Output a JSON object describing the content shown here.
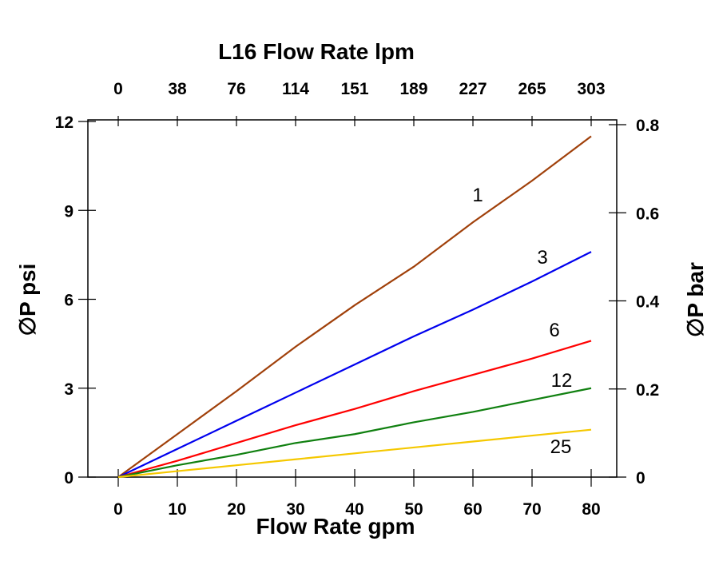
{
  "chart_data": {
    "type": "line",
    "title": "",
    "top_xlabel": "L16 Flow Rate lpm",
    "xlabel": "Flow Rate gpm",
    "ylabel": "∅P psi",
    "right_ylabel": "∅P bar",
    "xlim": [
      0,
      80
    ],
    "ylim": [
      0,
      12
    ],
    "right_ylim": [
      0,
      0.8
    ],
    "x_ticks": [
      0,
      10,
      20,
      30,
      40,
      50,
      60,
      70,
      80
    ],
    "top_x_ticks": [
      "0",
      "38",
      "76",
      "114",
      "151",
      "189",
      "227",
      "265",
      "303"
    ],
    "y_ticks": [
      0,
      3,
      6,
      9,
      12
    ],
    "right_y_ticks": [
      "0",
      "0.2",
      "0.4",
      "0.6",
      "0.8"
    ],
    "grid": false,
    "x": [
      0,
      10,
      20,
      30,
      40,
      50,
      60,
      70,
      80
    ],
    "series": [
      {
        "name": "1",
        "color": "#a0400a",
        "values": [
          0,
          1.45,
          2.9,
          4.4,
          5.8,
          7.1,
          8.6,
          10.0,
          11.5
        ]
      },
      {
        "name": "3",
        "color": "#0000ee",
        "values": [
          0,
          0.95,
          1.9,
          2.85,
          3.8,
          4.75,
          5.65,
          6.6,
          7.6
        ]
      },
      {
        "name": "6",
        "color": "#ff0000",
        "values": [
          0,
          0.55,
          1.15,
          1.75,
          2.3,
          2.9,
          3.45,
          4.0,
          4.6
        ]
      },
      {
        "name": "12",
        "color": "#108010",
        "values": [
          0,
          0.4,
          0.75,
          1.15,
          1.45,
          1.85,
          2.2,
          2.6,
          3.0
        ]
      },
      {
        "name": "25",
        "color": "#f5c800",
        "values": [
          0,
          0.2,
          0.4,
          0.6,
          0.8,
          1.0,
          1.2,
          1.4,
          1.6
        ]
      }
    ]
  }
}
